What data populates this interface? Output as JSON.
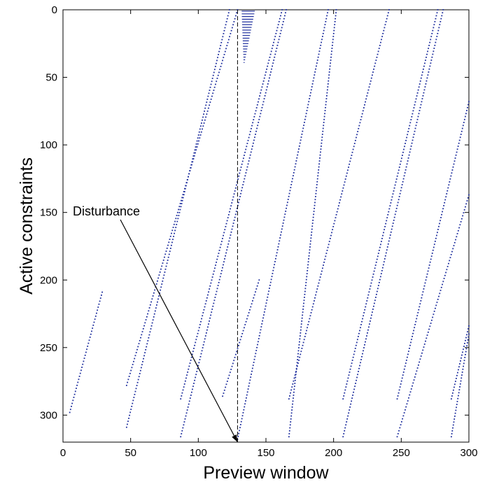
{
  "chart_data": {
    "type": "scatter",
    "xlabel": "Preview window",
    "ylabel": "Active constraints",
    "xlim": [
      0,
      300
    ],
    "ylim": [
      320,
      0
    ],
    "y_axis_inverted": true,
    "x_ticks": [
      0,
      50,
      100,
      150,
      200,
      250,
      300
    ],
    "y_ticks": [
      0,
      50,
      100,
      150,
      200,
      250,
      300
    ],
    "grid": false,
    "marker_color": "#1f2f9e",
    "annotation": {
      "text": "Disturbance",
      "xy": [
        129,
        320
      ]
    },
    "vline": {
      "x": 129,
      "style": "dashed"
    },
    "segments": [
      {
        "x": [
          5,
          29
        ],
        "y": [
          298,
          209
        ]
      },
      {
        "x": [
          47,
          129
        ],
        "y": [
          278,
          0
        ]
      },
      {
        "x": [
          47,
          123
        ],
        "y": [
          309,
          0
        ]
      },
      {
        "x": [
          87,
          162
        ],
        "y": [
          288,
          0
        ]
      },
      {
        "x": [
          87,
          165
        ],
        "y": [
          316,
          0
        ]
      },
      {
        "x": [
          118,
          145
        ],
        "y": [
          286,
          200
        ]
      },
      {
        "x": [
          129,
          196
        ],
        "y": [
          318,
          0
        ]
      },
      {
        "x": [
          167,
          241
        ],
        "y": [
          288,
          0
        ]
      },
      {
        "x": [
          167,
          202
        ],
        "y": [
          316,
          0
        ]
      },
      {
        "x": [
          207,
          277
        ],
        "y": [
          288,
          0
        ]
      },
      {
        "x": [
          207,
          281
        ],
        "y": [
          316,
          0
        ]
      },
      {
        "x": [
          247,
          300
        ],
        "y": [
          288,
          68
        ]
      },
      {
        "x": [
          247,
          300
        ],
        "y": [
          316,
          137
        ]
      },
      {
        "x": [
          287,
          300
        ],
        "y": [
          288,
          234
        ]
      },
      {
        "x": [
          287,
          300
        ],
        "y": [
          316,
          240
        ]
      }
    ],
    "stripe_block": {
      "x": [
        132,
        142
      ],
      "y": [
        0,
        40
      ]
    }
  }
}
